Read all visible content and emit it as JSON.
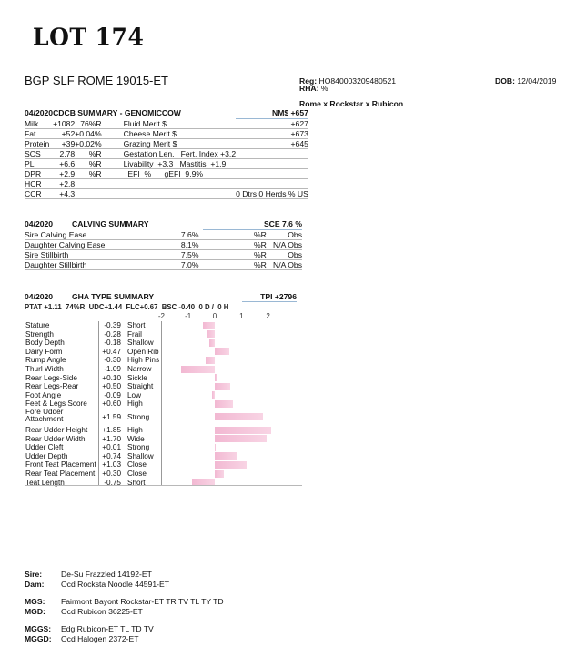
{
  "lot": "LOT 174",
  "animal_name": "BGP SLF ROME 19015-ET",
  "reg_label": "Reg:",
  "reg": "HO840003209480521",
  "rha_label": "RHA:",
  "rha": "%",
  "dob_label": "DOB:",
  "dob": "12/04/2019",
  "pedigree_line": "Rome x Rockstar x Rubicon",
  "cdcb": {
    "date": "04/2020",
    "title": "CDCB SUMMARY - GENOMICCOW",
    "nm": "NM$ +657",
    "rows": [
      [
        "Milk",
        "+1082",
        "76%R",
        "Fluid Merit $",
        "+627"
      ],
      [
        "Fat",
        "+52",
        "+0.04%",
        "Cheese Merit $",
        "+673"
      ],
      [
        "Protein",
        "+39",
        "+0.02%",
        "Grazing Merit $",
        "+645"
      ],
      [
        "SCS",
        "2.78",
        "%R",
        "Gestation Len.   Fert. Index +3.2",
        ""
      ],
      [
        "PL",
        "+6.6",
        "%R",
        "Livability  +3.3   Mastitis  +1.9",
        ""
      ],
      [
        "DPR",
        "+2.9",
        "%R",
        "  EFI  %      gEFI  9.9%",
        ""
      ],
      [
        "HCR",
        "+2.8",
        "",
        "",
        ""
      ],
      [
        "CCR",
        "+4.3",
        "",
        "",
        "0 Dtrs  0 Herds  % US"
      ]
    ]
  },
  "calving": {
    "date": "04/2020",
    "title": "CALVING SUMMARY",
    "sce": "SCE 7.6 %",
    "rows": [
      [
        "Sire Calving Ease",
        "7.6%",
        "%R",
        "Obs"
      ],
      [
        "Daughter Calving Ease",
        "8.1%",
        "%R",
        "N/A Obs"
      ],
      [
        "Sire Stillbirth",
        "7.5%",
        "%R",
        "Obs"
      ],
      [
        "Daughter Stillbirth",
        "7.0%",
        "%R",
        "N/A Obs"
      ]
    ]
  },
  "type": {
    "date": "04/2020",
    "title": "GHA TYPE SUMMARY",
    "tpi": "TPI +2796",
    "ptat_line": "PTAT +1.11  74%R  UDC+1.44  FLC+0.67  BSC -0.40  0 D /  0 H",
    "ticks": [
      "-2",
      "-1",
      "0",
      "1",
      "2"
    ],
    "traits": [
      {
        "name": "Stature",
        "value": "-0.39",
        "desc": "Short",
        "v": -0.39
      },
      {
        "name": "Strength",
        "value": "-0.28",
        "desc": "Frail",
        "v": -0.28
      },
      {
        "name": "Body Depth",
        "value": "-0.18",
        "desc": "Shallow",
        "v": -0.18
      },
      {
        "name": "Dairy Form",
        "value": "+0.47",
        "desc": "Open Rib",
        "v": 0.47
      },
      {
        "name": "Rump Angle",
        "value": "-0.30",
        "desc": "High Pins",
        "v": -0.3
      },
      {
        "name": "Thurl Width",
        "value": "-1.09",
        "desc": "Narrow",
        "v": -1.09
      },
      {
        "name": "Rear Legs-Side",
        "value": "+0.10",
        "desc": "Sickle",
        "v": 0.1
      },
      {
        "name": "Rear Legs-Rear",
        "value": "+0.50",
        "desc": "Straight",
        "v": 0.5
      },
      {
        "name": "Foot Angle",
        "value": "-0.09",
        "desc": "Low",
        "v": -0.09
      },
      {
        "name": "Feet & Legs Score",
        "value": "+0.60",
        "desc": "High",
        "v": 0.6
      },
      {
        "name": "Fore Udder Attachment",
        "value": "+1.59",
        "desc": "Strong",
        "v": 1.59
      },
      {
        "name": "Rear Udder Height",
        "value": "+1.85",
        "desc": "High",
        "v": 1.85
      },
      {
        "name": "Rear Udder Width",
        "value": "+1.70",
        "desc": "Wide",
        "v": 1.7
      },
      {
        "name": "Udder Cleft",
        "value": "+0.01",
        "desc": "Strong",
        "v": 0.01
      },
      {
        "name": "Udder Depth",
        "value": "+0.74",
        "desc": "Shallow",
        "v": 0.74
      },
      {
        "name": "Front Teat Placement",
        "value": "+1.03",
        "desc": "Close",
        "v": 1.03
      },
      {
        "name": "Rear Teat Placement",
        "value": "+0.30",
        "desc": "Close",
        "v": 0.3
      },
      {
        "name": "Teat Length",
        "value": "-0.75",
        "desc": "Short",
        "v": -0.75
      }
    ],
    "bar_color": "#f2b8d2"
  },
  "pedigree": [
    {
      "label": "Sire:",
      "value": "De-Su Frazzled 14192-ET"
    },
    {
      "label": "Dam:",
      "value": "Ocd Rocksta Noodle 44591-ET"
    },
    {
      "label": "MGS:",
      "value": "Fairmont Bayont Rockstar-ET TR TV TL TY TD"
    },
    {
      "label": "MGD:",
      "value": "Ocd Rubicon 36225-ET"
    },
    {
      "label": "MGGS:",
      "value": "Edg Rubicon-ET TL TD TV"
    },
    {
      "label": "MGGD:",
      "value": "Ocd Halogen 2372-ET"
    }
  ]
}
